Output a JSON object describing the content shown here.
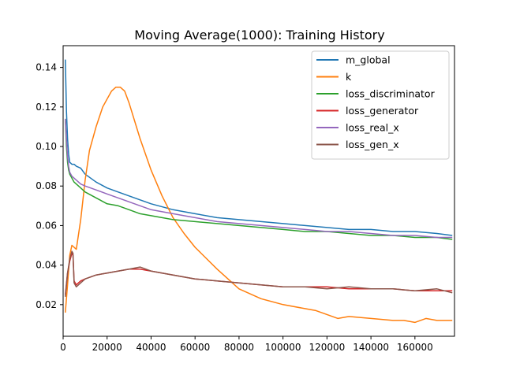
{
  "chart_data": {
    "type": "line",
    "title": "Moving Average(1000): Training History",
    "xlabel": "",
    "ylabel": "",
    "xlim": [
      0,
      178000
    ],
    "ylim": [
      0.004,
      0.151
    ],
    "xticks": [
      0,
      20000,
      40000,
      60000,
      80000,
      100000,
      120000,
      140000,
      160000
    ],
    "xtick_labels": [
      "0",
      "20000",
      "40000",
      "60000",
      "80000",
      "100000",
      "120000",
      "140000",
      "160000"
    ],
    "yticks": [
      0.02,
      0.04,
      0.06,
      0.08,
      0.1,
      0.12,
      0.14
    ],
    "ytick_labels": [
      "0.02",
      "0.04",
      "0.06",
      "0.08",
      "0.10",
      "0.12",
      "0.14"
    ],
    "grid": false,
    "legend_position": "top-right",
    "series": [
      {
        "name": "m_global",
        "color": "#1f77b4",
        "x": [
          1000,
          1500,
          2000,
          2500,
          3000,
          4000,
          5000,
          6000,
          8000,
          10000,
          15000,
          20000,
          25000,
          30000,
          35000,
          40000,
          50000,
          60000,
          70000,
          80000,
          90000,
          100000,
          110000,
          120000,
          130000,
          140000,
          150000,
          160000,
          170000,
          177000
        ],
        "y": [
          0.144,
          0.118,
          0.104,
          0.096,
          0.092,
          0.091,
          0.091,
          0.09,
          0.089,
          0.086,
          0.082,
          0.079,
          0.077,
          0.075,
          0.073,
          0.071,
          0.068,
          0.066,
          0.064,
          0.063,
          0.062,
          0.061,
          0.06,
          0.059,
          0.058,
          0.058,
          0.057,
          0.057,
          0.056,
          0.055
        ]
      },
      {
        "name": "k",
        "color": "#ff7f0e",
        "x": [
          1000,
          2000,
          3000,
          4000,
          5000,
          6000,
          8000,
          10000,
          12000,
          15000,
          18000,
          20000,
          22000,
          24000,
          26000,
          28000,
          30000,
          35000,
          40000,
          45000,
          50000,
          55000,
          60000,
          70000,
          80000,
          90000,
          100000,
          110000,
          115000,
          120000,
          125000,
          130000,
          140000,
          150000,
          155000,
          160000,
          165000,
          170000,
          177000
        ],
        "y": [
          0.016,
          0.03,
          0.045,
          0.05,
          0.049,
          0.048,
          0.063,
          0.083,
          0.098,
          0.11,
          0.12,
          0.124,
          0.128,
          0.13,
          0.13,
          0.128,
          0.122,
          0.104,
          0.088,
          0.075,
          0.064,
          0.056,
          0.049,
          0.038,
          0.028,
          0.023,
          0.02,
          0.018,
          0.017,
          0.015,
          0.013,
          0.014,
          0.013,
          0.012,
          0.012,
          0.011,
          0.013,
          0.012,
          0.012
        ]
      },
      {
        "name": "loss_discriminator",
        "color": "#2ca02c",
        "x": [
          1000,
          1500,
          2000,
          2500,
          3000,
          4000,
          5000,
          6000,
          8000,
          10000,
          15000,
          20000,
          25000,
          30000,
          35000,
          40000,
          50000,
          60000,
          70000,
          80000,
          90000,
          100000,
          110000,
          120000,
          130000,
          140000,
          150000,
          160000,
          170000,
          177000
        ],
        "y": [
          0.114,
          0.1,
          0.092,
          0.088,
          0.086,
          0.084,
          0.082,
          0.081,
          0.079,
          0.077,
          0.074,
          0.071,
          0.07,
          0.068,
          0.066,
          0.065,
          0.063,
          0.062,
          0.061,
          0.06,
          0.059,
          0.058,
          0.057,
          0.057,
          0.056,
          0.055,
          0.055,
          0.054,
          0.054,
          0.053
        ]
      },
      {
        "name": "loss_generator",
        "color": "#d62728",
        "x": [
          1000,
          2000,
          3000,
          4000,
          4500,
          5000,
          6000,
          7000,
          8000,
          10000,
          15000,
          20000,
          25000,
          30000,
          35000,
          40000,
          50000,
          60000,
          70000,
          80000,
          90000,
          100000,
          110000,
          120000,
          130000,
          140000,
          150000,
          160000,
          170000,
          177000
        ],
        "y": [
          0.025,
          0.036,
          0.042,
          0.046,
          0.045,
          0.032,
          0.03,
          0.031,
          0.032,
          0.033,
          0.035,
          0.036,
          0.037,
          0.038,
          0.038,
          0.037,
          0.035,
          0.033,
          0.032,
          0.031,
          0.03,
          0.029,
          0.029,
          0.029,
          0.028,
          0.028,
          0.028,
          0.027,
          0.027,
          0.027
        ]
      },
      {
        "name": "loss_real_x",
        "color": "#9467bd",
        "x": [
          1000,
          1500,
          2000,
          2500,
          3000,
          4000,
          5000,
          6000,
          8000,
          10000,
          15000,
          20000,
          25000,
          30000,
          35000,
          40000,
          50000,
          60000,
          70000,
          80000,
          90000,
          100000,
          110000,
          120000,
          130000,
          140000,
          150000,
          160000,
          170000,
          177000
        ],
        "y": [
          0.114,
          0.104,
          0.095,
          0.09,
          0.087,
          0.085,
          0.084,
          0.083,
          0.081,
          0.08,
          0.078,
          0.076,
          0.074,
          0.072,
          0.07,
          0.068,
          0.066,
          0.064,
          0.062,
          0.061,
          0.06,
          0.059,
          0.058,
          0.057,
          0.057,
          0.056,
          0.055,
          0.055,
          0.054,
          0.054
        ]
      },
      {
        "name": "loss_gen_x",
        "color": "#8c564b",
        "x": [
          1000,
          2000,
          3000,
          4000,
          4500,
          5000,
          6000,
          7000,
          8000,
          10000,
          15000,
          20000,
          25000,
          30000,
          35000,
          40000,
          50000,
          60000,
          70000,
          80000,
          90000,
          100000,
          110000,
          120000,
          130000,
          140000,
          150000,
          160000,
          170000,
          177000
        ],
        "y": [
          0.024,
          0.036,
          0.043,
          0.047,
          0.046,
          0.031,
          0.029,
          0.03,
          0.031,
          0.033,
          0.035,
          0.036,
          0.037,
          0.038,
          0.039,
          0.037,
          0.035,
          0.033,
          0.032,
          0.031,
          0.03,
          0.029,
          0.029,
          0.028,
          0.029,
          0.028,
          0.028,
          0.027,
          0.028,
          0.026
        ]
      }
    ]
  }
}
